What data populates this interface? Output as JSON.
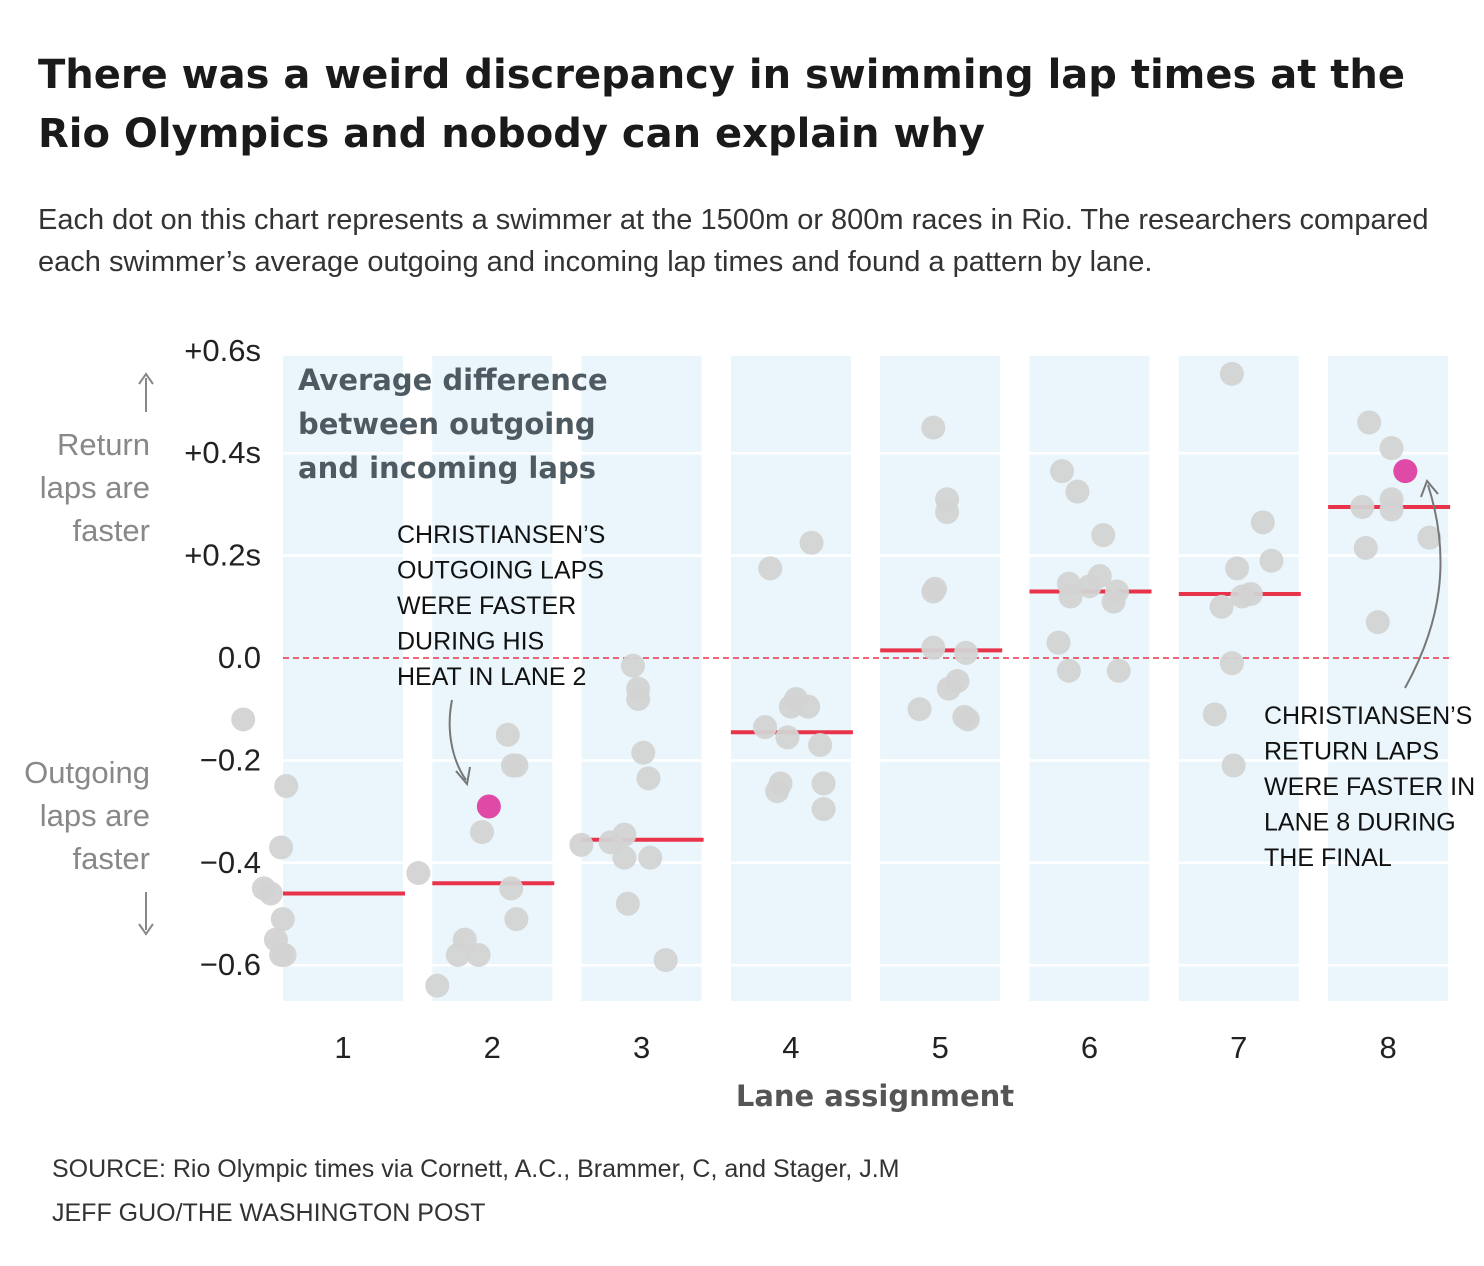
{
  "headline": "There was a weird discrepancy in swimming lap times at the Rio Olympics and nobody can explain why",
  "dek": "Each dot on this chart represents a swimmer at the 1500m or 800m races in Rio. The researchers compared each swimmer’s average outgoing and incoming lap times and found a pattern by lane.",
  "source": "SOURCE: Rio Olympic times via Cornett, A.C., Brammer, C, and Stager, J.M",
  "credit": "JEFF GUO/THE WASHINGTON POST",
  "colors": {
    "lane_band": "#eaf6fb",
    "dot": "#d3d3d3",
    "highlight": "#e04aa7",
    "average_line": "#e8334a",
    "zero_line": "#e8334a",
    "axis_text": "#222222",
    "side_label": "#888888",
    "arrow": "#888888"
  },
  "chart_data": {
    "type": "scatter",
    "title": "Average difference between outgoing and incoming laps",
    "xlabel": "Lane assignment",
    "ylabel": "",
    "categories": [
      "1",
      "2",
      "3",
      "4",
      "5",
      "6",
      "7",
      "8"
    ],
    "ylim": [
      -0.67,
      0.6
    ],
    "y_ticks": [
      {
        "value": 0.6,
        "label": "+0.6s"
      },
      {
        "value": 0.4,
        "label": "+0.4s"
      },
      {
        "value": 0.2,
        "label": "+0.2s"
      },
      {
        "value": 0.0,
        "label": "0.0"
      },
      {
        "value": -0.2,
        "label": "−0.2"
      },
      {
        "value": -0.4,
        "label": "−0.4"
      },
      {
        "value": -0.6,
        "label": "−0.6"
      }
    ],
    "grid": true,
    "reference_line": 0.0,
    "side_labels": {
      "top": "Return laps are faster",
      "bottom": "Outgoing laps are faster"
    },
    "averages": [
      -0.46,
      -0.44,
      -0.355,
      -0.145,
      0.015,
      0.13,
      0.125,
      0.295
    ],
    "series": [
      {
        "values": [
          [
            1,
            -0.58,
            -0.12
          ],
          [
            1,
            -0.33,
            -0.25
          ],
          [
            1,
            -0.36,
            -0.37
          ],
          [
            1,
            -0.46,
            -0.45
          ],
          [
            1,
            -0.42,
            -0.46
          ],
          [
            1,
            -0.35,
            -0.51
          ],
          [
            1,
            -0.39,
            -0.55
          ],
          [
            1,
            -0.34,
            -0.58
          ],
          [
            1,
            -0.36,
            -0.58
          ],
          [
            2,
            -0.43,
            -0.42
          ],
          [
            2,
            -0.2,
            -0.58
          ],
          [
            2,
            -0.16,
            -0.55
          ],
          [
            2,
            -0.08,
            -0.58
          ],
          [
            2,
            -0.32,
            -0.64
          ],
          [
            2,
            0.09,
            -0.15
          ],
          [
            2,
            0.12,
            -0.21
          ],
          [
            2,
            0.14,
            -0.21
          ],
          [
            2,
            -0.06,
            -0.34
          ],
          [
            2,
            0.11,
            -0.45
          ],
          [
            2,
            0.14,
            -0.51
          ],
          [
            3,
            -0.05,
            -0.015
          ],
          [
            3,
            -0.02,
            -0.06
          ],
          [
            3,
            -0.02,
            -0.08
          ],
          [
            3,
            0.01,
            -0.185
          ],
          [
            3,
            0.04,
            -0.235
          ],
          [
            3,
            -0.35,
            -0.365
          ],
          [
            3,
            -0.18,
            -0.36
          ],
          [
            3,
            -0.1,
            -0.345
          ],
          [
            3,
            -0.1,
            -0.39
          ],
          [
            3,
            0.05,
            -0.39
          ],
          [
            3,
            -0.08,
            -0.48
          ],
          [
            3,
            0.14,
            -0.59
          ],
          [
            4,
            -0.12,
            0.175
          ],
          [
            4,
            0.12,
            0.225
          ],
          [
            4,
            0.03,
            -0.08
          ],
          [
            4,
            0.0,
            -0.095
          ],
          [
            4,
            0.1,
            -0.095
          ],
          [
            4,
            -0.15,
            -0.135
          ],
          [
            4,
            -0.02,
            -0.155
          ],
          [
            4,
            0.17,
            -0.17
          ],
          [
            4,
            -0.06,
            -0.245
          ],
          [
            4,
            0.19,
            -0.245
          ],
          [
            4,
            -0.08,
            -0.26
          ],
          [
            4,
            0.19,
            -0.295
          ],
          [
            5,
            -0.04,
            0.45
          ],
          [
            5,
            0.04,
            0.31
          ],
          [
            5,
            0.04,
            0.285
          ],
          [
            5,
            -0.04,
            0.13
          ],
          [
            5,
            -0.03,
            0.135
          ],
          [
            5,
            -0.04,
            0.02
          ],
          [
            5,
            0.15,
            0.01
          ],
          [
            5,
            0.1,
            -0.045
          ],
          [
            5,
            0.05,
            -0.06
          ],
          [
            5,
            -0.12,
            -0.1
          ],
          [
            5,
            0.14,
            -0.115
          ],
          [
            5,
            0.16,
            -0.12
          ],
          [
            6,
            -0.16,
            0.365
          ],
          [
            6,
            -0.07,
            0.325
          ],
          [
            6,
            0.08,
            0.24
          ],
          [
            6,
            0.06,
            0.16
          ],
          [
            6,
            -0.12,
            0.145
          ],
          [
            6,
            0.0,
            0.14
          ],
          [
            6,
            0.16,
            0.13
          ],
          [
            6,
            -0.11,
            0.12
          ],
          [
            6,
            0.14,
            0.11
          ],
          [
            6,
            -0.18,
            0.03
          ],
          [
            6,
            -0.12,
            -0.025
          ],
          [
            6,
            0.17,
            -0.025
          ],
          [
            7,
            -0.04,
            0.555
          ],
          [
            7,
            0.14,
            0.265
          ],
          [
            7,
            0.19,
            0.19
          ],
          [
            7,
            -0.01,
            0.175
          ],
          [
            7,
            0.07,
            0.125
          ],
          [
            7,
            0.02,
            0.12
          ],
          [
            7,
            -0.1,
            0.1
          ],
          [
            7,
            -0.04,
            -0.01
          ],
          [
            7,
            -0.14,
            -0.11
          ],
          [
            7,
            -0.03,
            -0.21
          ],
          [
            8,
            -0.11,
            0.46
          ],
          [
            8,
            0.02,
            0.41
          ],
          [
            8,
            0.02,
            0.31
          ],
          [
            8,
            -0.15,
            0.295
          ],
          [
            8,
            0.02,
            0.29
          ],
          [
            8,
            -0.13,
            0.215
          ],
          [
            8,
            0.24,
            0.235
          ],
          [
            8,
            -0.06,
            0.07
          ]
        ]
      },
      {
        "highlight": true,
        "values": [
          [
            2,
            -0.02,
            -0.29
          ],
          [
            8,
            0.1,
            0.365
          ]
        ]
      }
    ],
    "annotations": [
      {
        "text": "CHRISTIANSEN’S OUTGOING LAPS WERE FASTER DURING HIS HEAT IN LANE 2",
        "lines": [
          "CHRISTIANSEN’S",
          "OUTGOING LAPS",
          "WERE FASTER",
          "DURING HIS",
          "HEAT IN LANE 2"
        ]
      },
      {
        "text": "CHRISTIANSEN’S RETURN LAPS WERE FASTER IN LANE 8 DURING THE FINAL",
        "lines": [
          "CHRISTIANSEN’S",
          "RETURN LAPS",
          "WERE FASTER IN",
          "LANE 8  DURING",
          "THE FINAL"
        ]
      }
    ],
    "title_lines": [
      "Average difference",
      "between outgoing",
      "and incoming laps"
    ]
  }
}
